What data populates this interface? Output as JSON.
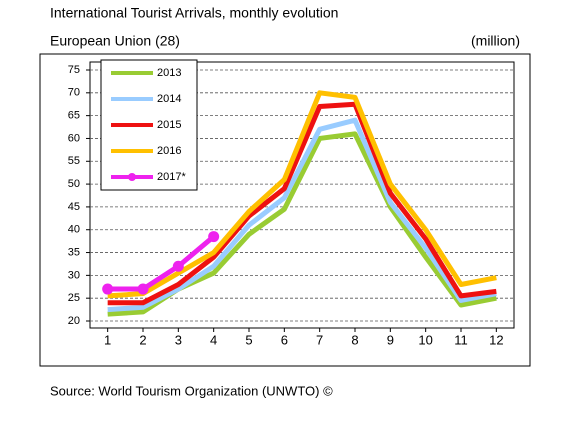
{
  "chart_data": {
    "type": "line",
    "title": "International Tourist Arrivals, monthly evolution",
    "subtitle": "European Union (28)",
    "unit_label": "(million)",
    "source": "Source: World Tourism Organization (UNWTO) ©",
    "x": [
      1,
      2,
      3,
      4,
      5,
      6,
      7,
      8,
      9,
      10,
      11,
      12
    ],
    "xlim": [
      0.5,
      12.5
    ],
    "xticks": [
      1,
      2,
      3,
      4,
      5,
      6,
      7,
      8,
      9,
      10,
      11,
      12
    ],
    "ylim": [
      20,
      75
    ],
    "yticks": [
      20,
      25,
      30,
      35,
      40,
      45,
      50,
      55,
      60,
      65,
      70,
      75
    ],
    "grid": true,
    "legend": "top-left",
    "series": [
      {
        "name": "2013",
        "color": "#99cc33",
        "values": [
          21.5,
          22,
          27,
          30.5,
          39,
          44.5,
          60,
          61,
          45,
          34,
          23.5,
          25
        ]
      },
      {
        "name": "2014",
        "color": "#99ccff",
        "values": [
          22.5,
          23,
          27,
          32,
          41,
          47,
          62,
          64,
          46,
          36,
          24.5,
          26
        ]
      },
      {
        "name": "2015",
        "color": "#ee1111",
        "values": [
          24,
          24,
          28,
          34,
          43,
          49,
          67,
          67.5,
          48,
          38,
          25.5,
          26.5
        ]
      },
      {
        "name": "2016",
        "color": "#ffc000",
        "values": [
          25.5,
          26,
          30.5,
          35,
          44,
          51,
          70,
          69,
          50,
          40,
          28,
          29.5
        ]
      },
      {
        "name": "2017*",
        "color": "#ee22ee",
        "markers": true,
        "values": [
          27,
          27,
          32,
          38.5,
          null,
          null,
          null,
          null,
          null,
          null,
          null,
          null
        ]
      }
    ]
  }
}
